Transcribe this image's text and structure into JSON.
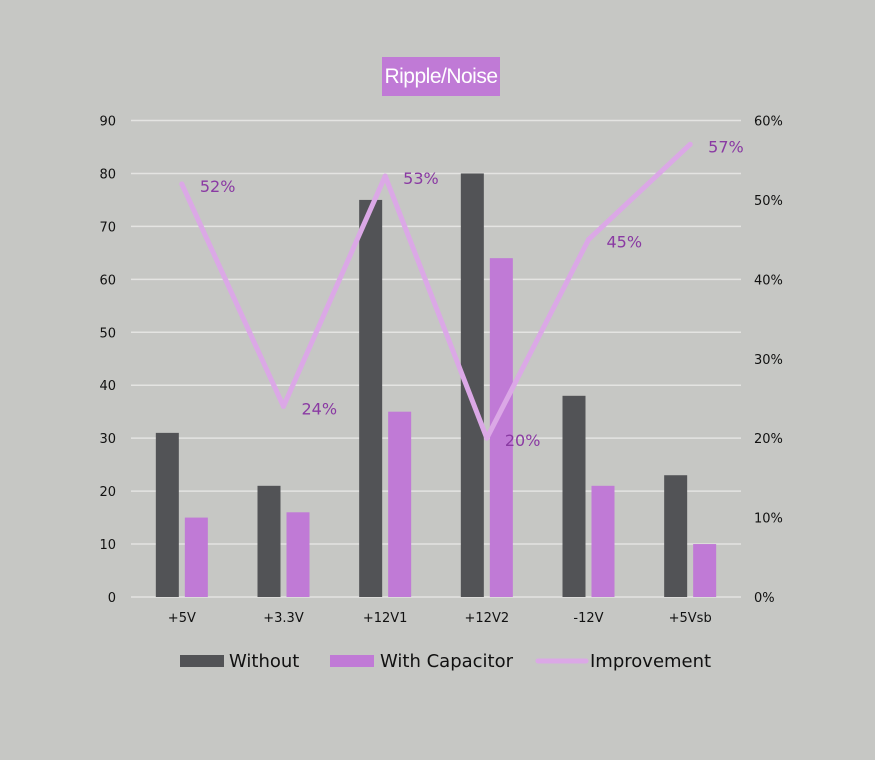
{
  "chart_data": {
    "type": "bar",
    "title": "Ripple/Noise",
    "categories": [
      "+5V",
      "+3.3V",
      "+12V1",
      "+12V2",
      "-12V",
      "+5Vsb"
    ],
    "series": [
      {
        "name": "Without",
        "kind": "bar",
        "axis": "left",
        "color": "#525356",
        "values": [
          31,
          21,
          75,
          80,
          38,
          23
        ]
      },
      {
        "name": "With Capacitor",
        "kind": "bar",
        "axis": "left",
        "color": "#c07ad6",
        "values": [
          15,
          16,
          35,
          64,
          21,
          10
        ]
      },
      {
        "name": "Improvement",
        "kind": "line",
        "axis": "right",
        "color": "#dba8e6",
        "values": [
          0.52,
          0.24,
          0.53,
          0.2,
          0.45,
          0.57
        ]
      }
    ],
    "improvement_labels": [
      "52%",
      "24%",
      "53%",
      "20%",
      "45%",
      "57%"
    ],
    "y_left": {
      "ylim": [
        0,
        90
      ],
      "ticks": [
        "0",
        "10",
        "20",
        "30",
        "40",
        "50",
        "60",
        "70",
        "80",
        "90"
      ]
    },
    "y_right": {
      "ylim": [
        0,
        0.6
      ],
      "ticks": [
        "0%",
        "10%",
        "20%",
        "30%",
        "40%",
        "50%",
        "60%"
      ]
    },
    "grid": true,
    "legend_position": "bottom",
    "colors": {
      "background": "#c6c7c4",
      "grid": "#e4e4e2",
      "label_purple": "#8a3aa3"
    }
  }
}
